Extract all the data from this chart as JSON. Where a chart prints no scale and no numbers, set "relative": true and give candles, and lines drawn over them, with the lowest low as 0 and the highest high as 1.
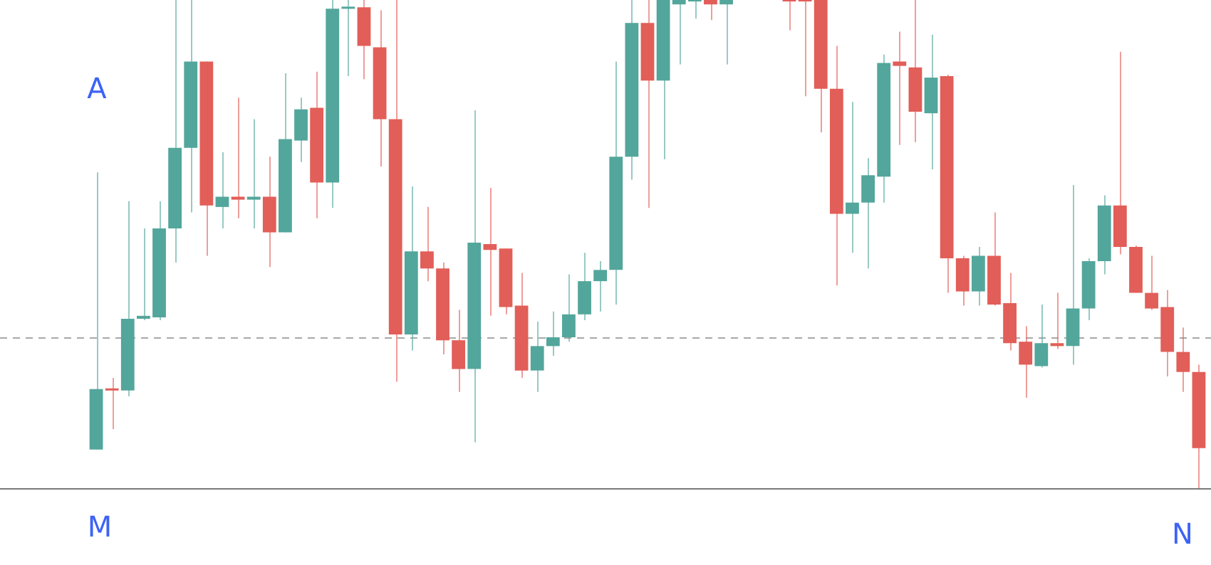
{
  "chart_data": {
    "type": "candlestick",
    "relative": true,
    "categories": [
      null,
      null,
      null,
      null,
      null,
      null,
      null,
      null,
      null,
      null,
      null,
      null,
      null,
      null,
      null,
      null,
      null,
      null,
      null,
      null,
      null,
      null,
      null,
      null,
      null,
      null,
      null,
      null,
      null,
      null,
      null,
      null,
      null,
      null,
      null,
      null,
      null,
      null,
      null,
      null,
      null,
      null,
      null,
      null,
      null,
      null,
      null,
      null,
      null,
      null,
      null,
      null,
      null,
      null,
      null,
      null,
      null,
      null,
      null,
      null,
      null,
      null,
      null,
      null,
      null,
      null,
      null,
      null,
      null,
      null,
      null
    ],
    "ohlc": [
      [
        0.079,
        0.647,
        0.079,
        0.203
      ],
      [
        0.203,
        0.226,
        0.121,
        0.2
      ],
      [
        0.2,
        0.588,
        0.188,
        0.347
      ],
      [
        0.347,
        0.532,
        0.344,
        0.353
      ],
      [
        0.35,
        0.588,
        0.344,
        0.532
      ],
      [
        0.532,
        1,
        0.462,
        0.697
      ],
      [
        0.697,
        1,
        0.565,
        0.874
      ],
      [
        0.874,
        0.874,
        0.476,
        0.579
      ],
      [
        0.576,
        0.688,
        0.532,
        0.597
      ],
      [
        0.597,
        0.8,
        0.553,
        0.591
      ],
      [
        0.591,
        0.756,
        0.532,
        0.597
      ],
      [
        0.597,
        0.679,
        0.453,
        0.524
      ],
      [
        0.524,
        0.85,
        0.524,
        0.715
      ],
      [
        0.712,
        0.8,
        0.668,
        0.776
      ],
      [
        0.779,
        0.853,
        0.553,
        0.626
      ],
      [
        0.626,
        1,
        0.574,
        0.982
      ],
      [
        0.982,
        1,
        0.844,
        0.985
      ],
      [
        0.985,
        1,
        0.838,
        0.906
      ],
      [
        0.903,
        0.979,
        0.659,
        0.756
      ],
      [
        0.756,
        1,
        0.218,
        0.315
      ],
      [
        0.315,
        0.618,
        0.282,
        0.485
      ],
      [
        0.485,
        0.576,
        0.424,
        0.45
      ],
      [
        0.45,
        0.462,
        0.274,
        0.303
      ],
      [
        0.303,
        0.365,
        0.197,
        0.244
      ],
      [
        0.244,
        0.774,
        0.094,
        0.503
      ],
      [
        0.5,
        0.615,
        0.353,
        0.488
      ],
      [
        0.491,
        0.491,
        0.356,
        0.371
      ],
      [
        0.374,
        0.441,
        0.226,
        0.241
      ],
      [
        0.241,
        0.341,
        0.197,
        0.291
      ],
      [
        0.291,
        0.362,
        0.271,
        0.309
      ],
      [
        0.309,
        0.438,
        0.3,
        0.356
      ],
      [
        0.356,
        0.482,
        0.344,
        0.424
      ],
      [
        0.424,
        0.465,
        0.362,
        0.447
      ],
      [
        0.447,
        0.874,
        0.376,
        0.679
      ],
      [
        0.679,
        1,
        0.632,
        0.953
      ],
      [
        0.953,
        1,
        0.574,
        0.835
      ],
      [
        0.835,
        1,
        0.674,
        1
      ],
      [
        0.991,
        1,
        0.868,
        1
      ],
      [
        0.997,
        1,
        0.962,
        1
      ],
      [
        1,
        1,
        0.959,
        0.991
      ],
      [
        0.991,
        1,
        0.868,
        1
      ],
      null,
      null,
      null,
      [
        1,
        1,
        0.938,
        0.997
      ],
      [
        1,
        1,
        0.803,
        0.997
      ],
      [
        1,
        1,
        0.729,
        0.818
      ],
      [
        0.818,
        0.906,
        0.415,
        0.562
      ],
      [
        0.562,
        0.791,
        0.482,
        0.585
      ],
      [
        0.585,
        0.676,
        0.45,
        0.641
      ],
      [
        0.638,
        0.888,
        0.585,
        0.871
      ],
      [
        0.874,
        0.935,
        0.703,
        0.865
      ],
      [
        0.862,
        1,
        0.709,
        0.771
      ],
      [
        0.768,
        0.929,
        0.653,
        0.841
      ],
      [
        0.844,
        0.847,
        0.4,
        0.471
      ],
      [
        0.471,
        0.476,
        0.374,
        0.403
      ],
      [
        0.403,
        0.494,
        0.374,
        0.476
      ],
      [
        0.476,
        0.565,
        0.374,
        0.376
      ],
      [
        0.379,
        0.441,
        0.282,
        0.297
      ],
      [
        0.3,
        0.332,
        0.185,
        0.253
      ],
      [
        0.25,
        0.376,
        0.247,
        0.297
      ],
      [
        0.297,
        0.4,
        0.285,
        0.291
      ],
      [
        0.291,
        0.621,
        0.253,
        0.368
      ],
      [
        0.368,
        0.471,
        0.344,
        0.465
      ],
      [
        0.465,
        0.6,
        0.438,
        0.579
      ],
      [
        0.579,
        0.894,
        0.479,
        0.494
      ],
      [
        0.494,
        0.497,
        0.4,
        0.4
      ],
      [
        0.4,
        0.476,
        0.365,
        0.368
      ],
      [
        0.371,
        0.406,
        0.229,
        0.279
      ],
      [
        0.279,
        0.329,
        0.197,
        0.238
      ],
      [
        0.238,
        0.253,
        0,
        0.082
      ]
    ],
    "colors": [
      "#53a69b",
      "#e25e58",
      "#53a69b",
      "#53a69b",
      "#53a69b",
      "#53a69b",
      "#53a69b",
      "#e25e58",
      "#53a69b",
      "#e25e58",
      "#53a69b",
      "#e25e58",
      "#53a69b",
      "#53a69b",
      "#e25e58",
      "#53a69b",
      "#53a69b",
      "#e25e58",
      "#e25e58",
      "#e25e58",
      "#53a69b",
      "#e25e58",
      "#e25e58",
      "#e25e58",
      "#53a69b",
      "#e25e58",
      "#e25e58",
      "#e25e58",
      "#53a69b",
      "#53a69b",
      "#53a69b",
      "#53a69b",
      "#53a69b",
      "#53a69b",
      "#53a69b",
      "#e25e58",
      "#53a69b",
      "#53a69b",
      "#53a69b",
      "#e25e58",
      "#53a69b",
      null,
      null,
      null,
      "#e25e58",
      "#e25e58",
      "#e25e58",
      "#e25e58",
      "#53a69b",
      "#53a69b",
      "#53a69b",
      "#e25e58",
      "#e25e58",
      "#53a69b",
      "#e25e58",
      "#e25e58",
      "#53a69b",
      "#e25e58",
      "#e25e58",
      "#e25e58",
      "#53a69b",
      "#e25e58",
      "#53a69b",
      "#53a69b",
      "#53a69b",
      "#e25e58",
      "#e25e58",
      "#e25e58",
      "#e25e58",
      "#e25e58",
      "#e25e58"
    ],
    "ref_lines": [
      {
        "axis": "y",
        "value": 0,
        "color": "#7a7a7a",
        "line_style": "solid"
      },
      {
        "axis": "y",
        "value": 0.309,
        "color": "#a8a8a8",
        "line_style": "dashed"
      }
    ],
    "annotations": [
      "A",
      "M",
      "N"
    ]
  }
}
